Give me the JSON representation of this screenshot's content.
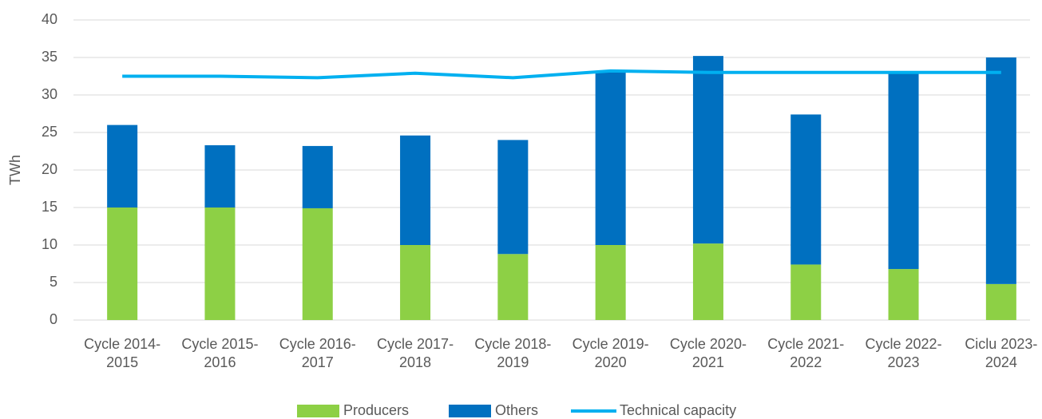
{
  "chart_data": {
    "type": "bar",
    "stacked": true,
    "y_label": "TWh",
    "categories": [
      "Cycle 2014-2015",
      "Cycle 2015-2016",
      "Cycle 2016-2017",
      "Cycle 2017-2018",
      "Cycle 2018-2019",
      "Cycle 2019-2020",
      "Cycle 2020-2021",
      "Cycle 2021-2022",
      "Cycle 2022-2023",
      "Ciclu 2023-2024"
    ],
    "series": [
      {
        "name": "Producers",
        "type": "bar",
        "color": "#8dd045",
        "values": [
          15,
          15,
          14.9,
          10,
          8.8,
          10,
          10.2,
          7.4,
          6.8,
          4.8
        ]
      },
      {
        "name": "Others",
        "type": "bar",
        "color": "#0070c0",
        "values": [
          11,
          8.3,
          8.3,
          14.6,
          15.2,
          23.2,
          25,
          20,
          26.2,
          30.2
        ]
      },
      {
        "name": "Technical capacity",
        "type": "line",
        "color": "#00b0f0",
        "values": [
          32.5,
          32.5,
          32.3,
          32.9,
          32.3,
          33.2,
          33.0,
          33.0,
          33.0,
          33.0
        ]
      }
    ],
    "ylim": [
      0,
      40
    ],
    "yticks": [
      0,
      5,
      10,
      15,
      20,
      25,
      30,
      35,
      40
    ],
    "grid": true,
    "legend": "bottom"
  }
}
